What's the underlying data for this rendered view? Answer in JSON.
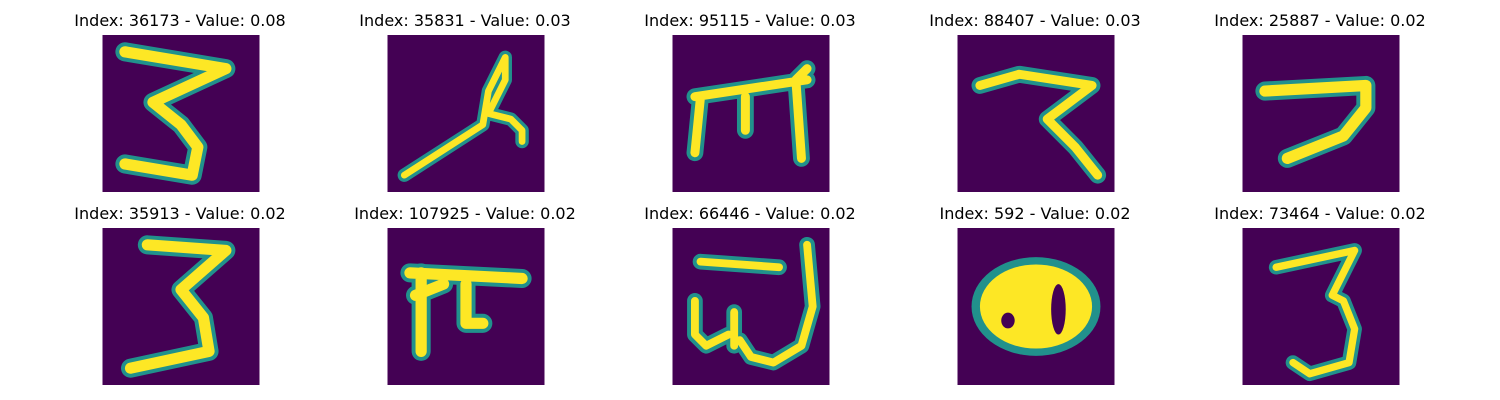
{
  "figure": {
    "panels": [
      {
        "title": "Index: 36173 - Value: 0.08"
      },
      {
        "title": "Index: 35831 - Value: 0.03"
      },
      {
        "title": "Index: 95115 - Value: 0.03"
      },
      {
        "title": "Index: 88407 - Value: 0.03"
      },
      {
        "title": "Index: 25887 - Value: 0.02"
      },
      {
        "title": "Index: 35913 - Value: 0.02"
      },
      {
        "title": "Index: 107925 - Value: 0.02"
      },
      {
        "title": "Index: 66446 - Value: 0.02"
      },
      {
        "title": "Index: 592 - Value: 0.02"
      },
      {
        "title": "Index: 73464 - Value: 0.02"
      }
    ]
  },
  "colors": {
    "background": "#440154",
    "stroke_core": "#fde725",
    "stroke_edge": "#21918c"
  }
}
